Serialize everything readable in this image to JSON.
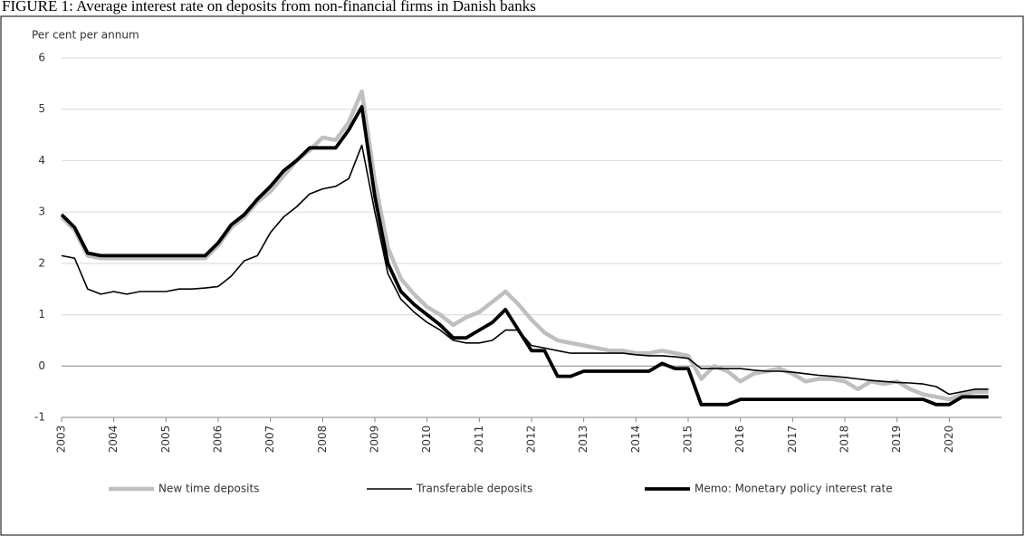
{
  "title": "FIGURE 1: Average interest rate on deposits from non-financial firms in Danish banks",
  "chart_data": {
    "type": "line",
    "y_label": "Per cent per annum",
    "x": [
      2003,
      2003.25,
      2003.5,
      2003.75,
      2004,
      2004.25,
      2004.5,
      2004.75,
      2005,
      2005.25,
      2005.5,
      2005.75,
      2006,
      2006.25,
      2006.5,
      2006.75,
      2007,
      2007.25,
      2007.5,
      2007.75,
      2008,
      2008.25,
      2008.5,
      2008.75,
      2009,
      2009.25,
      2009.5,
      2009.75,
      2010,
      2010.25,
      2010.5,
      2010.75,
      2011,
      2011.25,
      2011.5,
      2011.75,
      2012,
      2012.25,
      2012.5,
      2012.75,
      2013,
      2013.25,
      2013.5,
      2013.75,
      2014,
      2014.25,
      2014.5,
      2014.75,
      2015,
      2015.25,
      2015.5,
      2015.75,
      2016,
      2016.25,
      2016.5,
      2016.75,
      2017,
      2017.25,
      2017.5,
      2017.75,
      2018,
      2018.25,
      2018.5,
      2018.75,
      2019,
      2019.25,
      2019.5,
      2019.75,
      2020,
      2020.25,
      2020.5,
      2020.75
    ],
    "series": [
      {
        "name": "New time deposits",
        "color": "#bfbfbf",
        "values": [
          2.9,
          2.65,
          2.15,
          2.1,
          2.1,
          2.1,
          2.1,
          2.1,
          2.1,
          2.1,
          2.1,
          2.1,
          2.35,
          2.7,
          2.9,
          3.2,
          3.4,
          3.7,
          4.0,
          4.2,
          4.45,
          4.4,
          4.75,
          5.35,
          3.6,
          2.3,
          1.7,
          1.4,
          1.15,
          1.0,
          0.8,
          0.95,
          1.05,
          1.25,
          1.45,
          1.2,
          0.9,
          0.65,
          0.5,
          0.45,
          0.4,
          0.35,
          0.3,
          0.3,
          0.25,
          0.25,
          0.3,
          0.25,
          0.2,
          -0.25,
          0.0,
          -0.1,
          -0.3,
          -0.15,
          -0.1,
          -0.05,
          -0.15,
          -0.3,
          -0.25,
          -0.25,
          -0.3,
          -0.45,
          -0.3,
          -0.35,
          -0.3,
          -0.45,
          -0.55,
          -0.6,
          -0.65,
          -0.55,
          -0.5,
          -0.5
        ]
      },
      {
        "name": "Transferable deposits",
        "color": "#000000",
        "values": [
          2.15,
          2.1,
          1.5,
          1.4,
          1.45,
          1.4,
          1.45,
          1.45,
          1.45,
          1.5,
          1.5,
          1.52,
          1.55,
          1.75,
          2.05,
          2.15,
          2.6,
          2.9,
          3.1,
          3.35,
          3.45,
          3.5,
          3.65,
          4.3,
          3.0,
          1.8,
          1.3,
          1.05,
          0.85,
          0.7,
          0.5,
          0.45,
          0.45,
          0.5,
          0.7,
          0.7,
          0.4,
          0.35,
          0.3,
          0.25,
          0.25,
          0.25,
          0.25,
          0.25,
          0.22,
          0.2,
          0.2,
          0.18,
          0.15,
          -0.05,
          -0.05,
          -0.05,
          -0.05,
          -0.08,
          -0.1,
          -0.1,
          -0.12,
          -0.15,
          -0.18,
          -0.2,
          -0.22,
          -0.25,
          -0.28,
          -0.3,
          -0.32,
          -0.33,
          -0.35,
          -0.4,
          -0.55,
          -0.5,
          -0.45,
          -0.45
        ]
      },
      {
        "name": "Memo: Monetary policy interest rate",
        "color": "#000000",
        "values": [
          2.95,
          2.7,
          2.2,
          2.15,
          2.15,
          2.15,
          2.15,
          2.15,
          2.15,
          2.15,
          2.15,
          2.15,
          2.4,
          2.75,
          2.95,
          3.25,
          3.5,
          3.8,
          4.0,
          4.25,
          4.25,
          4.25,
          4.6,
          5.05,
          3.3,
          2.0,
          1.45,
          1.2,
          1.0,
          0.8,
          0.55,
          0.55,
          0.7,
          0.85,
          1.1,
          0.7,
          0.3,
          0.3,
          -0.2,
          -0.2,
          -0.1,
          -0.1,
          -0.1,
          -0.1,
          -0.1,
          -0.1,
          0.05,
          -0.05,
          -0.05,
          -0.75,
          -0.75,
          -0.75,
          -0.65,
          -0.65,
          -0.65,
          -0.65,
          -0.65,
          -0.65,
          -0.65,
          -0.65,
          -0.65,
          -0.65,
          -0.65,
          -0.65,
          -0.65,
          -0.65,
          -0.65,
          -0.75,
          -0.75,
          -0.6,
          -0.6,
          -0.6
        ]
      }
    ],
    "xlim": [
      2003,
      2021
    ],
    "xticks": [
      2003,
      2004,
      2005,
      2006,
      2007,
      2008,
      2009,
      2010,
      2011,
      2012,
      2013,
      2014,
      2015,
      2016,
      2017,
      2018,
      2019,
      2020
    ],
    "ylim": [
      -1,
      6
    ],
    "yticks": [
      -1,
      0,
      1,
      2,
      3,
      4,
      5,
      6
    ],
    "grid": true,
    "legend": "bottom"
  }
}
